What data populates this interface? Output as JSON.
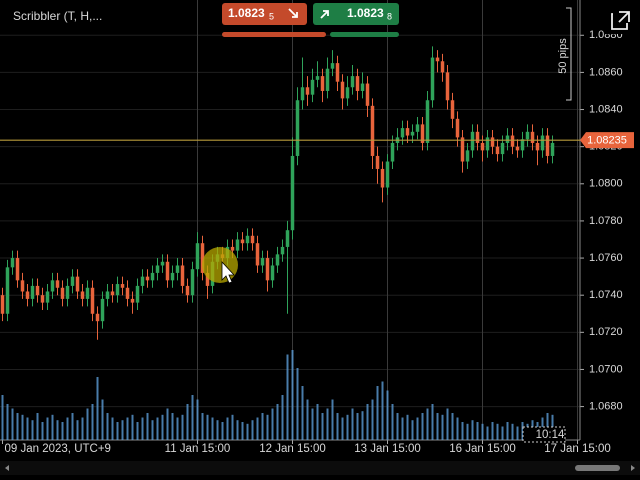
{
  "chart_data": {
    "type": "candlestick",
    "instrument": "Scribbler (T, H,...",
    "sell": {
      "price": "1.0823",
      "pip": "5"
    },
    "buy": {
      "price": "1.0823",
      "pip": "8"
    },
    "pips_label": "50 pips",
    "time_label": "10:14",
    "up_color": "#2fa35a",
    "down_color": "#e8643c",
    "volume_color": "#5b9bd5",
    "price_line_color": "#b89a3a",
    "price_line": 1.08235,
    "grid": true,
    "ylim": [
      1.0662,
      1.0899
    ],
    "yticks": [
      {
        "value": 1.068,
        "label": "1.0680"
      },
      {
        "value": 1.07,
        "label": "1.0700"
      },
      {
        "value": 1.072,
        "label": "1.0720"
      },
      {
        "value": 1.074,
        "label": "1.0740"
      },
      {
        "value": 1.076,
        "label": "1.0760"
      },
      {
        "value": 1.078,
        "label": "1.0780"
      },
      {
        "value": 1.08,
        "label": "1.0800"
      },
      {
        "value": 1.082,
        "label": "1.0820"
      },
      {
        "value": 1.084,
        "label": "1.0840"
      },
      {
        "value": 1.086,
        "label": "1.0860"
      },
      {
        "value": 1.088,
        "label": "1.0880"
      }
    ],
    "xlim": [
      -0.5,
      115.5
    ],
    "xticks": [
      {
        "value": 0,
        "label": "09 Jan 2023, UTC+9"
      },
      {
        "value": 39,
        "label": "11 Jan 15:00"
      },
      {
        "value": 58,
        "label": "12 Jan 15:00"
      },
      {
        "value": 77,
        "label": "13 Jan 15:00"
      },
      {
        "value": 96,
        "label": "16 Jan 15:00"
      },
      {
        "value": 115,
        "label": "17 Jan 15:00"
      }
    ],
    "candles": [
      [
        1.074,
        1.0744,
        1.0726,
        1.073
      ],
      [
        1.073,
        1.0759,
        1.0726,
        1.0755
      ],
      [
        1.0755,
        1.0764,
        1.0751,
        1.076
      ],
      [
        1.076,
        1.0764,
        1.0744,
        1.0748
      ],
      [
        1.0748,
        1.0752,
        1.0738,
        1.0742
      ],
      [
        1.0742,
        1.0746,
        1.0734,
        1.0738
      ],
      [
        1.0738,
        1.0749,
        1.0734,
        1.0745
      ],
      [
        1.0745,
        1.0749,
        1.0736,
        1.074
      ],
      [
        1.074,
        1.0744,
        1.0732,
        1.0736
      ],
      [
        1.0736,
        1.0746,
        1.0732,
        1.0742
      ],
      [
        1.0742,
        1.0752,
        1.0738,
        1.0748
      ],
      [
        1.0748,
        1.0752,
        1.074,
        1.0744
      ],
      [
        1.0744,
        1.0748,
        1.0734,
        1.0738
      ],
      [
        1.0738,
        1.0749,
        1.0734,
        1.0745
      ],
      [
        1.0745,
        1.0754,
        1.0741,
        1.075
      ],
      [
        1.075,
        1.0754,
        1.0738,
        1.0742
      ],
      [
        1.0742,
        1.0746,
        1.0734,
        1.0738
      ],
      [
        1.0738,
        1.0748,
        1.0734,
        1.0744
      ],
      [
        1.0744,
        1.0748,
        1.0726,
        1.073
      ],
      [
        1.073,
        1.0734,
        1.0716,
        1.0726
      ],
      [
        1.0726,
        1.0742,
        1.0722,
        1.0738
      ],
      [
        1.0738,
        1.0746,
        1.0734,
        1.0742
      ],
      [
        1.0742,
        1.0746,
        1.0736,
        1.074
      ],
      [
        1.074,
        1.075,
        1.0736,
        1.0746
      ],
      [
        1.0746,
        1.075,
        1.074,
        1.0744
      ],
      [
        1.0744,
        1.0748,
        1.0734,
        1.0738
      ],
      [
        1.0738,
        1.0742,
        1.073,
        1.0736
      ],
      [
        1.0736,
        1.0749,
        1.0732,
        1.0745
      ],
      [
        1.0745,
        1.0754,
        1.0741,
        1.075
      ],
      [
        1.075,
        1.0754,
        1.0744,
        1.0748
      ],
      [
        1.0748,
        1.0756,
        1.0744,
        1.0752
      ],
      [
        1.0752,
        1.076,
        1.0748,
        1.0756
      ],
      [
        1.0756,
        1.0762,
        1.0752,
        1.0758
      ],
      [
        1.0758,
        1.0762,
        1.0744,
        1.0748
      ],
      [
        1.0748,
        1.0756,
        1.0744,
        1.0752
      ],
      [
        1.0752,
        1.076,
        1.0748,
        1.0756
      ],
      [
        1.0756,
        1.076,
        1.0741,
        1.0745
      ],
      [
        1.0745,
        1.0749,
        1.0736,
        1.074
      ],
      [
        1.074,
        1.0758,
        1.0736,
        1.0754
      ],
      [
        1.0754,
        1.0774,
        1.075,
        1.0768
      ],
      [
        1.0768,
        1.0772,
        1.0748,
        1.0752
      ],
      [
        1.0752,
        1.0756,
        1.0738,
        1.0745
      ],
      [
        1.0745,
        1.0762,
        1.0741,
        1.0758
      ],
      [
        1.0758,
        1.0766,
        1.0754,
        1.0762
      ],
      [
        1.0762,
        1.0766,
        1.0756,
        1.076
      ],
      [
        1.076,
        1.077,
        1.0756,
        1.0766
      ],
      [
        1.0766,
        1.077,
        1.076,
        1.0764
      ],
      [
        1.0764,
        1.0774,
        1.076,
        1.077
      ],
      [
        1.077,
        1.0774,
        1.0764,
        1.0768
      ],
      [
        1.0768,
        1.0776,
        1.0764,
        1.0772
      ],
      [
        1.0772,
        1.0776,
        1.0764,
        1.0768
      ],
      [
        1.0768,
        1.0772,
        1.0752,
        1.0756
      ],
      [
        1.0756,
        1.0764,
        1.0752,
        1.076
      ],
      [
        1.076,
        1.0764,
        1.0742,
        1.0748
      ],
      [
        1.0748,
        1.076,
        1.0744,
        1.0756
      ],
      [
        1.0756,
        1.0766,
        1.0752,
        1.0762
      ],
      [
        1.0762,
        1.077,
        1.0758,
        1.0766
      ],
      [
        1.0766,
        1.078,
        1.073,
        1.0775
      ],
      [
        1.0775,
        1.0825,
        1.077,
        1.0815
      ],
      [
        1.0815,
        1.0852,
        1.081,
        1.0845
      ],
      [
        1.0845,
        1.0868,
        1.084,
        1.0852
      ],
      [
        1.0852,
        1.0858,
        1.0842,
        1.0848
      ],
      [
        1.0848,
        1.0862,
        1.0844,
        1.0856
      ],
      [
        1.0856,
        1.0866,
        1.0852,
        1.0858
      ],
      [
        1.0858,
        1.0862,
        1.0844,
        1.085
      ],
      [
        1.085,
        1.0868,
        1.0846,
        1.0862
      ],
      [
        1.0862,
        1.0872,
        1.0858,
        1.0865
      ],
      [
        1.0865,
        1.0869,
        1.085,
        1.0855
      ],
      [
        1.0855,
        1.0859,
        1.084,
        1.0846
      ],
      [
        1.0846,
        1.0858,
        1.0842,
        1.0852
      ],
      [
        1.0852,
        1.0864,
        1.0848,
        1.0858
      ],
      [
        1.0858,
        1.0862,
        1.0845,
        1.085
      ],
      [
        1.085,
        1.086,
        1.0846,
        1.0854
      ],
      [
        1.0854,
        1.0858,
        1.0836,
        1.0842
      ],
      [
        1.0842,
        1.0846,
        1.0808,
        1.0815
      ],
      [
        1.0815,
        1.082,
        1.08,
        1.0808
      ],
      [
        1.0808,
        1.0812,
        1.079,
        1.0798
      ],
      [
        1.0798,
        1.0816,
        1.0794,
        1.0812
      ],
      [
        1.0812,
        1.0826,
        1.0808,
        1.0822
      ],
      [
        1.0822,
        1.083,
        1.0818,
        1.0825
      ],
      [
        1.0825,
        1.0834,
        1.0821,
        1.083
      ],
      [
        1.083,
        1.0834,
        1.0822,
        1.0826
      ],
      [
        1.0826,
        1.0832,
        1.0822,
        1.0828
      ],
      [
        1.0828,
        1.0836,
        1.0824,
        1.0832
      ],
      [
        1.0832,
        1.0836,
        1.0818,
        1.0822
      ],
      [
        1.0822,
        1.085,
        1.0818,
        1.0845
      ],
      [
        1.0845,
        1.0874,
        1.0841,
        1.0868
      ],
      [
        1.0868,
        1.0872,
        1.086,
        1.0866
      ],
      [
        1.0866,
        1.087,
        1.0855,
        1.086
      ],
      [
        1.086,
        1.0864,
        1.084,
        1.0845
      ],
      [
        1.0845,
        1.0849,
        1.083,
        1.0835
      ],
      [
        1.0835,
        1.0839,
        1.082,
        1.0825
      ],
      [
        1.0825,
        1.0829,
        1.0806,
        1.0812
      ],
      [
        1.0812,
        1.0822,
        1.0808,
        1.0818
      ],
      [
        1.0818,
        1.0832,
        1.0814,
        1.0828
      ],
      [
        1.0828,
        1.0832,
        1.0818,
        1.0822
      ],
      [
        1.0822,
        1.0826,
        1.0812,
        1.0818
      ],
      [
        1.0818,
        1.0829,
        1.0814,
        1.0825
      ],
      [
        1.0825,
        1.0829,
        1.0816,
        1.082
      ],
      [
        1.082,
        1.0824,
        1.0812,
        1.0816
      ],
      [
        1.0816,
        1.0826,
        1.0812,
        1.0822
      ],
      [
        1.0822,
        1.083,
        1.0818,
        1.0826
      ],
      [
        1.0826,
        1.083,
        1.0816,
        1.082
      ],
      [
        1.082,
        1.0824,
        1.0814,
        1.0818
      ],
      [
        1.0818,
        1.0828,
        1.0814,
        1.0824
      ],
      [
        1.0824,
        1.0832,
        1.082,
        1.0828
      ],
      [
        1.0828,
        1.0832,
        1.0818,
        1.0822
      ],
      [
        1.0822,
        1.0826,
        1.081,
        1.0818
      ],
      [
        1.0818,
        1.083,
        1.0814,
        1.0826
      ],
      [
        1.0826,
        1.083,
        1.0811,
        1.0815
      ],
      [
        1.0815,
        1.0826,
        1.0811,
        1.0822
      ]
    ],
    "volume": [
      50,
      40,
      35,
      30,
      28,
      25,
      22,
      30,
      20,
      25,
      28,
      22,
      20,
      25,
      30,
      22,
      25,
      35,
      40,
      70,
      45,
      30,
      25,
      20,
      22,
      25,
      28,
      20,
      25,
      30,
      22,
      25,
      28,
      35,
      30,
      25,
      28,
      40,
      50,
      45,
      30,
      28,
      25,
      22,
      20,
      25,
      28,
      22,
      20,
      18,
      22,
      25,
      30,
      28,
      35,
      40,
      50,
      95,
      100,
      80,
      60,
      45,
      35,
      40,
      30,
      35,
      45,
      30,
      25,
      28,
      35,
      30,
      32,
      40,
      45,
      60,
      65,
      55,
      40,
      30,
      25,
      28,
      22,
      25,
      30,
      35,
      40,
      30,
      28,
      35,
      30,
      25,
      20,
      18,
      22,
      20,
      18,
      15,
      20,
      18,
      15,
      20,
      18,
      15,
      20,
      18,
      22,
      20,
      25,
      30,
      28
    ]
  }
}
